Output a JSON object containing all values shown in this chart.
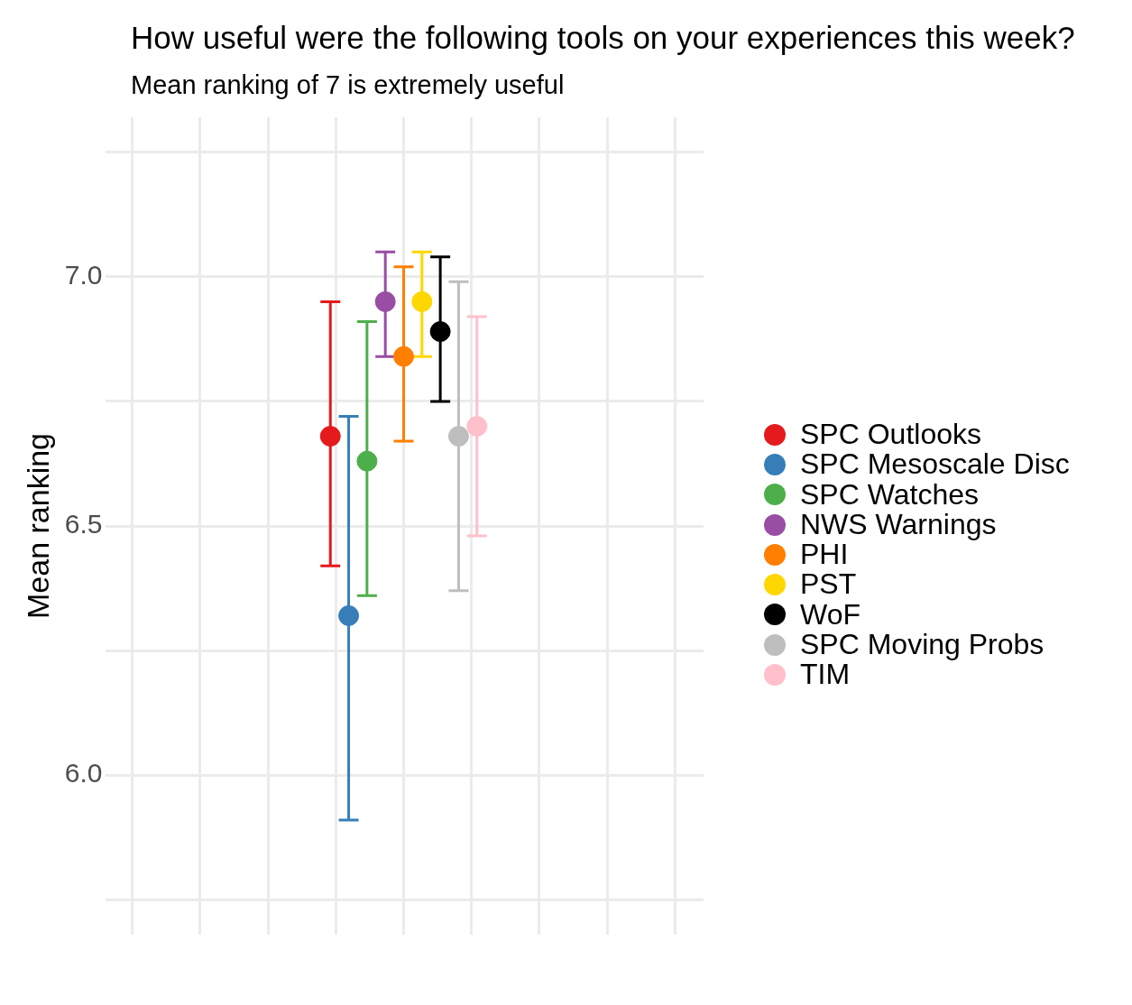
{
  "chart_data": {
    "type": "scatter",
    "title": "How useful were the following tools on your experiences this week?",
    "subtitle": "Mean ranking of 7 is extremely useful",
    "ylabel": "Mean ranking",
    "categories": [
      null
    ],
    "ylim": [
      5.68,
      7.32
    ],
    "yticks": [
      {
        "value": 5.75,
        "label": null
      },
      {
        "value": 6,
        "label": "6.0"
      },
      {
        "value": 6.25,
        "label": null
      },
      {
        "value": 6.5,
        "label": "6.5"
      },
      {
        "value": 6.75,
        "label": null
      },
      {
        "value": 7,
        "label": "7.0"
      },
      {
        "value": 7.25,
        "label": null
      }
    ],
    "tick_labels": "y",
    "grid": true,
    "legend": "right",
    "marker": "circle",
    "series": [
      {
        "name": "SPC Outlooks",
        "color": "#e41a1c",
        "values": [
          6.68
        ],
        "errors": [
          [
            6.42,
            6.95
          ]
        ]
      },
      {
        "name": "SPC Mesoscale Disc",
        "color": "#377eb8",
        "values": [
          6.32
        ],
        "errors": [
          [
            5.91,
            6.72
          ]
        ]
      },
      {
        "name": "SPC Watches",
        "color": "#4daf4a",
        "values": [
          6.63
        ],
        "errors": [
          [
            6.36,
            6.91
          ]
        ]
      },
      {
        "name": "NWS Warnings",
        "color": "#984ea3",
        "values": [
          6.95
        ],
        "errors": [
          [
            6.84,
            7.05
          ]
        ]
      },
      {
        "name": "PHI",
        "color": "#ff7f00",
        "values": [
          6.84
        ],
        "errors": [
          [
            6.67,
            7.02
          ]
        ]
      },
      {
        "name": "PST",
        "color": "#ffd700",
        "values": [
          6.95
        ],
        "errors": [
          [
            6.84,
            7.05
          ]
        ]
      },
      {
        "name": "WoF",
        "color": "#000000",
        "values": [
          6.89
        ],
        "errors": [
          [
            6.75,
            7.04
          ]
        ]
      },
      {
        "name": "SPC Moving Probs",
        "color": "#bebebe",
        "values": [
          6.68
        ],
        "errors": [
          [
            6.37,
            6.99
          ]
        ]
      },
      {
        "name": "TIM",
        "color": "#ffc0cb",
        "values": [
          6.7
        ],
        "errors": [
          [
            6.48,
            6.92
          ]
        ]
      }
    ]
  }
}
